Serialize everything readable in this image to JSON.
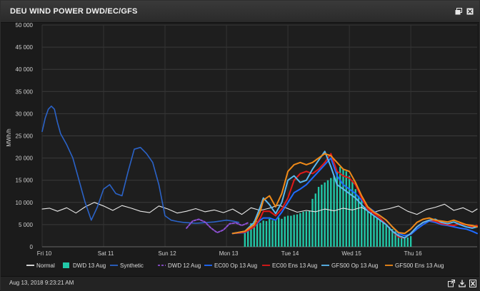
{
  "window": {
    "title": "DEU WIND POWER DWD/EC/GFS"
  },
  "footer": {
    "timestamp": "Aug 13, 2018 9:23:21 AM"
  },
  "icons": {
    "restore": "restore-window-icon",
    "close_top": "close-icon",
    "popout": "popout-icon",
    "download": "download-icon",
    "excel": "excel-export-icon"
  },
  "chart_data": {
    "type": "line",
    "ylabel": "MWh/h",
    "ylim": [
      0,
      50000
    ],
    "yticks": [
      0,
      5000,
      10000,
      15000,
      20000,
      25000,
      30000,
      35000,
      40000,
      45000,
      50000
    ],
    "ytick_labels": [
      "0",
      "5 000",
      "10 000",
      "15 000",
      "20 000",
      "25 000",
      "30 000",
      "35 000",
      "40 000",
      "45 000",
      "50 000"
    ],
    "xlim": [
      0,
      7.08
    ],
    "xticks": [
      0,
      1,
      2,
      3,
      4,
      5,
      6
    ],
    "xtick_labels": [
      "Fri 10",
      "Sat 11",
      "Sun 12",
      "Mon 13",
      "Tue 14",
      "Wed 15",
      "Thu 16"
    ],
    "legend_position": "bottom",
    "grid": true,
    "colors": {
      "normal": "#e8e8e8",
      "dwd13": "#22c8a8",
      "synthetic": "#2b63c8",
      "dwd12": "#8c4fd1",
      "ec00op": "#1f6bff",
      "ec00ens": "#e01919",
      "gfs00op": "#5ab8f0",
      "gfs00ens": "#f08a18"
    },
    "series": [
      {
        "name": "Normal",
        "key": "normal",
        "kind": "line",
        "x": [
          0,
          0.12,
          0.25,
          0.4,
          0.55,
          0.7,
          0.85,
          1.0,
          1.15,
          1.3,
          1.45,
          1.6,
          1.75,
          1.9,
          2.05,
          2.2,
          2.35,
          2.5,
          2.65,
          2.8,
          2.95,
          3.1,
          3.25,
          3.4,
          3.55,
          3.7,
          3.85,
          4.0,
          4.15,
          4.3,
          4.45,
          4.6,
          4.75,
          4.9,
          5.05,
          5.2,
          5.35,
          5.5,
          5.65,
          5.8,
          5.95,
          6.1,
          6.25,
          6.4,
          6.55,
          6.7,
          6.85,
          7.0,
          7.08
        ],
        "y": [
          8500,
          8700,
          8000,
          8800,
          7600,
          9000,
          10000,
          9200,
          8200,
          9300,
          8700,
          8000,
          7700,
          9200,
          8500,
          7600,
          8000,
          8600,
          7900,
          8300,
          7700,
          8500,
          7300,
          8800,
          8200,
          8700,
          9400,
          8600,
          7800,
          8200,
          7900,
          8500,
          8100,
          8700,
          8300,
          8900,
          7600,
          8200,
          8600,
          9200,
          8000,
          7300,
          8400,
          8900,
          9600,
          8200,
          8800,
          7800,
          8500
        ]
      },
      {
        "name": "Synthetic",
        "key": "synthetic",
        "kind": "line",
        "x": [
          0,
          0.05,
          0.1,
          0.15,
          0.2,
          0.25,
          0.3,
          0.4,
          0.5,
          0.6,
          0.65,
          0.7,
          0.8,
          0.9,
          1.0,
          1.1,
          1.2,
          1.3,
          1.4,
          1.5,
          1.6,
          1.7,
          1.8,
          1.9,
          2.0,
          2.05,
          2.1,
          2.2,
          2.3,
          2.4,
          2.5,
          2.6,
          2.7,
          2.8,
          2.9,
          3.0,
          3.1,
          3.2
        ],
        "y": [
          26000,
          29000,
          31000,
          31700,
          31000,
          28000,
          25500,
          23000,
          20000,
          15000,
          12500,
          10000,
          6000,
          9000,
          13000,
          14000,
          12000,
          11500,
          17000,
          22000,
          22400,
          21000,
          19000,
          14000,
          7000,
          6500,
          6000,
          5700,
          5500,
          5400,
          5300,
          5400,
          5500,
          5600,
          5800,
          6000,
          5800,
          5500
        ]
      },
      {
        "name": "DWD 12 Aug",
        "key": "dwd12",
        "kind": "dashed",
        "x": [
          2.35,
          2.45,
          2.55,
          2.65,
          2.75,
          2.85,
          2.95,
          3.05,
          3.15,
          3.25,
          3.35
        ],
        "y": [
          4200,
          5800,
          6200,
          5600,
          4200,
          3200,
          3800,
          5200,
          5400,
          4800,
          5400
        ]
      },
      {
        "name": "EC00 Op 13 Aug",
        "key": "ec00op",
        "kind": "line",
        "x": [
          3.1,
          3.3,
          3.45,
          3.55,
          3.6,
          3.7,
          3.8,
          3.9,
          4.0,
          4.1,
          4.2,
          4.3,
          4.4,
          4.5,
          4.6,
          4.7,
          4.8,
          4.9,
          5.0,
          5.1,
          5.2,
          5.3,
          5.4,
          5.5,
          5.6,
          5.7,
          5.8,
          5.9,
          6.0,
          6.1,
          6.2,
          6.3,
          6.4,
          6.5,
          6.6,
          6.7,
          6.8,
          6.9,
          7.0,
          7.08
        ],
        "y": [
          3000,
          3200,
          4500,
          6000,
          6500,
          6500,
          6000,
          7800,
          10000,
          12200,
          13000,
          14000,
          15500,
          17000,
          18500,
          20000,
          16000,
          14000,
          13000,
          12000,
          10500,
          9000,
          8000,
          7000,
          6000,
          4500,
          3000,
          2500,
          2800,
          4000,
          5000,
          5800,
          5500,
          5000,
          4800,
          4500,
          4200,
          4000,
          3500,
          3000
        ]
      },
      {
        "name": "EC00 Ens 13 Aug",
        "key": "ec00ens",
        "kind": "line",
        "x": [
          3.1,
          3.3,
          3.45,
          3.55,
          3.6,
          3.7,
          3.8,
          3.9,
          4.0,
          4.1,
          4.2,
          4.3,
          4.4,
          4.5,
          4.6,
          4.7,
          4.8,
          4.9,
          5.0,
          5.1,
          5.2,
          5.3,
          5.4,
          5.5,
          5.6,
          5.7,
          5.8,
          5.9,
          6.0,
          6.1,
          6.2,
          6.3,
          6.4,
          6.5,
          6.6,
          6.7,
          6.8,
          6.9,
          7.0,
          7.08
        ],
        "y": [
          3000,
          3300,
          4500,
          6500,
          8000,
          8000,
          7000,
          8500,
          11000,
          15000,
          16500,
          17000,
          16500,
          17500,
          19000,
          21000,
          17000,
          16000,
          15500,
          14000,
          11000,
          8500,
          7500,
          6500,
          5000,
          3500,
          2200,
          2000,
          3000,
          4500,
          5500,
          6000,
          5800,
          5200,
          5000,
          4800,
          5200,
          5000,
          4500,
          4800
        ]
      },
      {
        "name": "GFS00 Op 13 Aug",
        "key": "gfs00op",
        "kind": "line",
        "x": [
          3.1,
          3.3,
          3.45,
          3.55,
          3.6,
          3.7,
          3.8,
          3.9,
          4.0,
          4.1,
          4.2,
          4.3,
          4.4,
          4.5,
          4.6,
          4.7,
          4.8,
          4.9,
          5.0,
          5.1,
          5.2,
          5.3,
          5.4,
          5.5,
          5.6,
          5.7,
          5.8,
          5.9,
          6.0,
          6.1,
          6.2,
          6.3,
          6.4,
          6.5,
          6.6,
          6.7,
          6.8,
          6.9,
          7.0,
          7.08
        ],
        "y": [
          3000,
          3500,
          5500,
          9000,
          11000,
          9500,
          7500,
          10000,
          15000,
          16000,
          14500,
          15000,
          17500,
          19500,
          21500,
          18000,
          14000,
          13000,
          12000,
          11000,
          9500,
          8000,
          7000,
          6000,
          5000,
          3500,
          2500,
          2000,
          3000,
          4500,
          5500,
          6000,
          6200,
          5500,
          5200,
          5600,
          5000,
          4500,
          4200,
          4500
        ]
      },
      {
        "name": "GFS00 Ens 13 Aug",
        "key": "gfs00ens",
        "kind": "line",
        "x": [
          3.1,
          3.3,
          3.45,
          3.55,
          3.6,
          3.7,
          3.8,
          3.9,
          4.0,
          4.1,
          4.2,
          4.3,
          4.4,
          4.5,
          4.6,
          4.7,
          4.8,
          4.9,
          5.0,
          5.1,
          5.2,
          5.3,
          5.4,
          5.5,
          5.6,
          5.7,
          5.8,
          5.9,
          6.0,
          6.1,
          6.2,
          6.3,
          6.4,
          6.5,
          6.6,
          6.7,
          6.8,
          6.9,
          7.0,
          7.08
        ],
        "y": [
          3000,
          3500,
          5000,
          8000,
          10500,
          11500,
          9000,
          12000,
          17000,
          18500,
          19000,
          18500,
          19000,
          20000,
          21000,
          20500,
          19000,
          17500,
          17000,
          14500,
          11500,
          9000,
          7800,
          7000,
          6000,
          4500,
          3200,
          3000,
          4000,
          5500,
          6200,
          6500,
          6000,
          5800,
          5600,
          6000,
          5500,
          5000,
          4800,
          4500
        ]
      },
      {
        "name": "DWD 13 Aug",
        "key": "dwd13",
        "kind": "bar",
        "x": [
          3.3,
          3.35,
          3.4,
          3.45,
          3.5,
          3.55,
          3.6,
          3.65,
          3.7,
          3.75,
          3.8,
          3.85,
          3.9,
          3.95,
          4.0,
          4.05,
          4.1,
          4.15,
          4.2,
          4.25,
          4.3,
          4.35,
          4.4,
          4.45,
          4.5,
          4.55,
          4.6,
          4.65,
          4.7,
          4.75,
          4.8,
          4.85,
          4.9,
          4.95,
          5.0,
          5.05,
          5.1,
          5.15,
          5.2,
          5.25,
          5.3,
          5.35,
          5.4,
          5.45,
          5.5,
          5.55,
          5.6,
          5.65,
          5.7,
          5.75,
          5.8,
          5.85,
          5.9,
          5.95,
          6.0
        ],
        "y": [
          3200,
          4200,
          5300,
          5800,
          5800,
          5400,
          5900,
          5800,
          6300,
          6000,
          6200,
          6600,
          6300,
          6800,
          7000,
          7000,
          7200,
          7300,
          7600,
          7900,
          8000,
          8100,
          10800,
          12000,
          13500,
          14000,
          14500,
          15000,
          15500,
          16000,
          17000,
          18000,
          17500,
          17000,
          16000,
          15000,
          13000,
          11500,
          10500,
          9000,
          8000,
          7500,
          7000,
          6500,
          6000,
          5500,
          5000,
          4500,
          4000,
          3500,
          2800,
          2400,
          2200,
          2100,
          2400
        ]
      }
    ],
    "legend": [
      {
        "label": "Normal",
        "key": "normal",
        "swatch": "line"
      },
      {
        "label": "DWD 13 Aug",
        "key": "dwd13",
        "swatch": "box"
      },
      {
        "label": "Synthetic",
        "key": "synthetic",
        "swatch": "line"
      },
      {
        "label": "DWD 12 Aug",
        "key": "dwd12",
        "swatch": "dashed"
      },
      {
        "label": "EC00 Op 13 Aug",
        "key": "ec00op",
        "swatch": "line"
      },
      {
        "label": "EC00 Ens 13 Aug",
        "key": "ec00ens",
        "swatch": "line"
      },
      {
        "label": "GFS00 Op 13 Aug",
        "key": "gfs00op",
        "swatch": "line"
      },
      {
        "label": "GFS00 Ens 13 Aug",
        "key": "gfs00ens",
        "swatch": "line"
      }
    ]
  }
}
